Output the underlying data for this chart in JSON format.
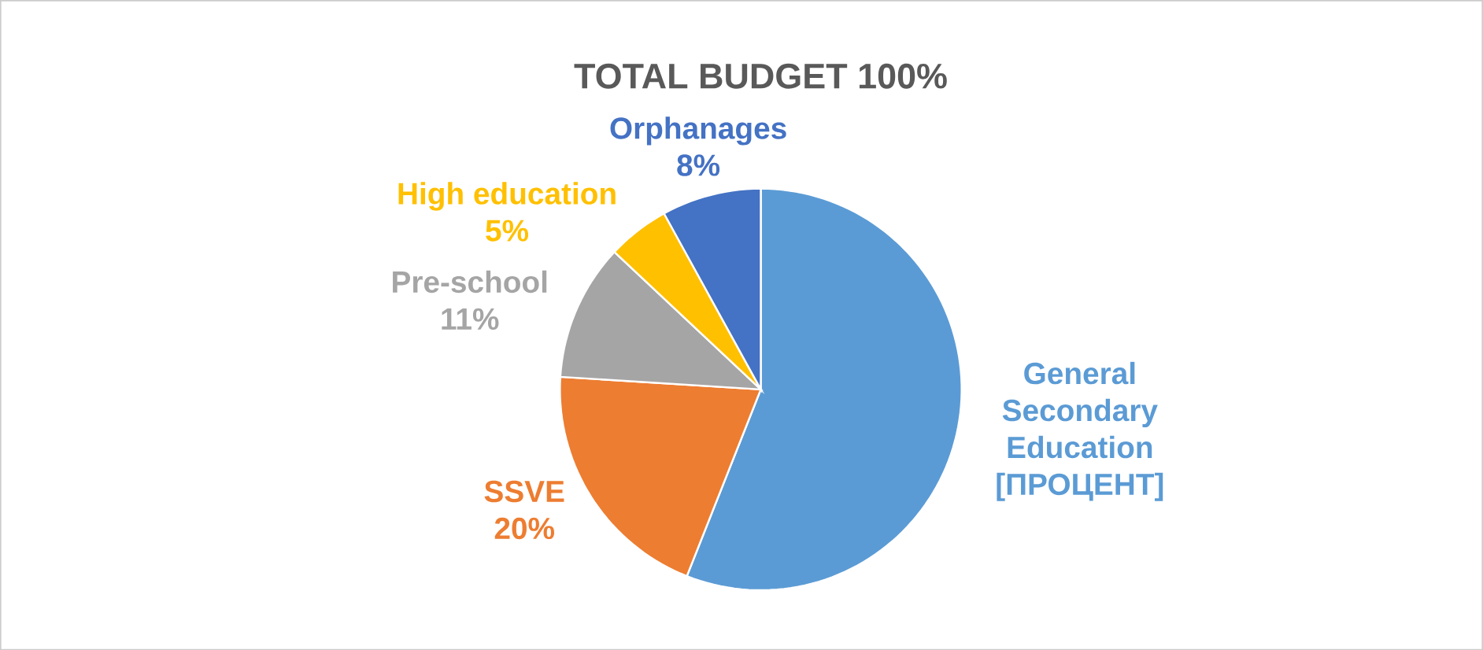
{
  "chart_data": {
    "type": "pie",
    "title": "TOTAL BUDGET 100%",
    "categories": [
      "General Secondary Education",
      "SSVE",
      "Pre-school",
      "High education",
      "Orphanages"
    ],
    "values": [
      56,
      20,
      11,
      5,
      8
    ],
    "value_labels": [
      "[ПРОЦЕНТ]",
      "20%",
      "11%",
      "5%",
      "8%"
    ],
    "colors": [
      "#5b9bd5",
      "#ed7d31",
      "#a5a5a5",
      "#ffc000",
      "#4472c4"
    ]
  }
}
